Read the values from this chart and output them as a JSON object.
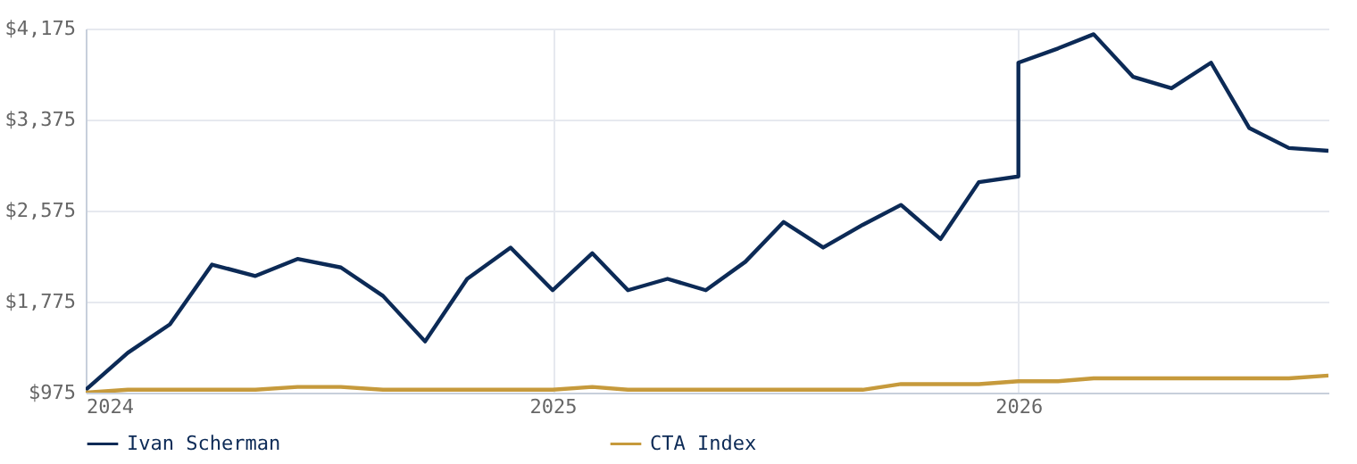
{
  "chart_data": {
    "type": "line",
    "x": [
      "2024-01-01",
      "2024-02-03",
      "2024-03-07",
      "2024-04-09",
      "2024-05-13",
      "2024-06-15",
      "2024-07-19",
      "2024-08-21",
      "2024-09-23",
      "2024-10-26",
      "2024-11-29",
      "2025-01-01",
      "2025-02-01",
      "2025-03-01",
      "2025-04-01",
      "2025-05-01",
      "2025-06-01",
      "2025-07-01",
      "2025-08-01",
      "2025-09-01",
      "2025-10-01",
      "2025-11-01",
      "2025-12-01",
      "2026-01-01",
      "2026-01-01",
      "2026-02-01",
      "2026-03-01",
      "2026-04-01",
      "2026-05-01",
      "2026-06-01",
      "2026-07-01",
      "2026-08-01",
      "2026-09-01"
    ],
    "series": [
      {
        "name": "Ivan Scherman",
        "color": "#0c2a56",
        "values": [
          1000,
          1325,
          1575,
          2100,
          2000,
          2150,
          2075,
          1825,
          1425,
          1975,
          2250,
          1875,
          2200,
          1875,
          1975,
          1875,
          2125,
          2475,
          2250,
          2450,
          2625,
          2325,
          2825,
          2875,
          3875,
          4000,
          4125,
          3750,
          3650,
          3875,
          3300,
          3125,
          3100
        ]
      },
      {
        "name": "CTA Index",
        "color": "#c69a3c",
        "values": [
          975,
          1000,
          1000,
          1000,
          1000,
          1025,
          1025,
          1000,
          1000,
          1000,
          1000,
          1000,
          1025,
          1000,
          1000,
          1000,
          1000,
          1000,
          1000,
          1000,
          1050,
          1050,
          1050,
          1075,
          1075,
          1075,
          1100,
          1100,
          1100,
          1100,
          1100,
          1100,
          1125
        ]
      }
    ],
    "xlim": [
      "2024-01-01",
      "2026-09-01"
    ],
    "xticks": [
      "2024",
      "2025",
      "2026"
    ],
    "ylim": [
      975,
      4175
    ],
    "yticks": [
      {
        "value": 975,
        "label": "$975"
      },
      {
        "value": 1775,
        "label": "$1,775"
      },
      {
        "value": 2575,
        "label": "$2,575"
      },
      {
        "value": 3375,
        "label": "$3,375"
      },
      {
        "value": 4175,
        "label": "$4,175"
      }
    ],
    "grid": true,
    "legend": "bottom",
    "marker": "none",
    "line_style": "solid"
  }
}
